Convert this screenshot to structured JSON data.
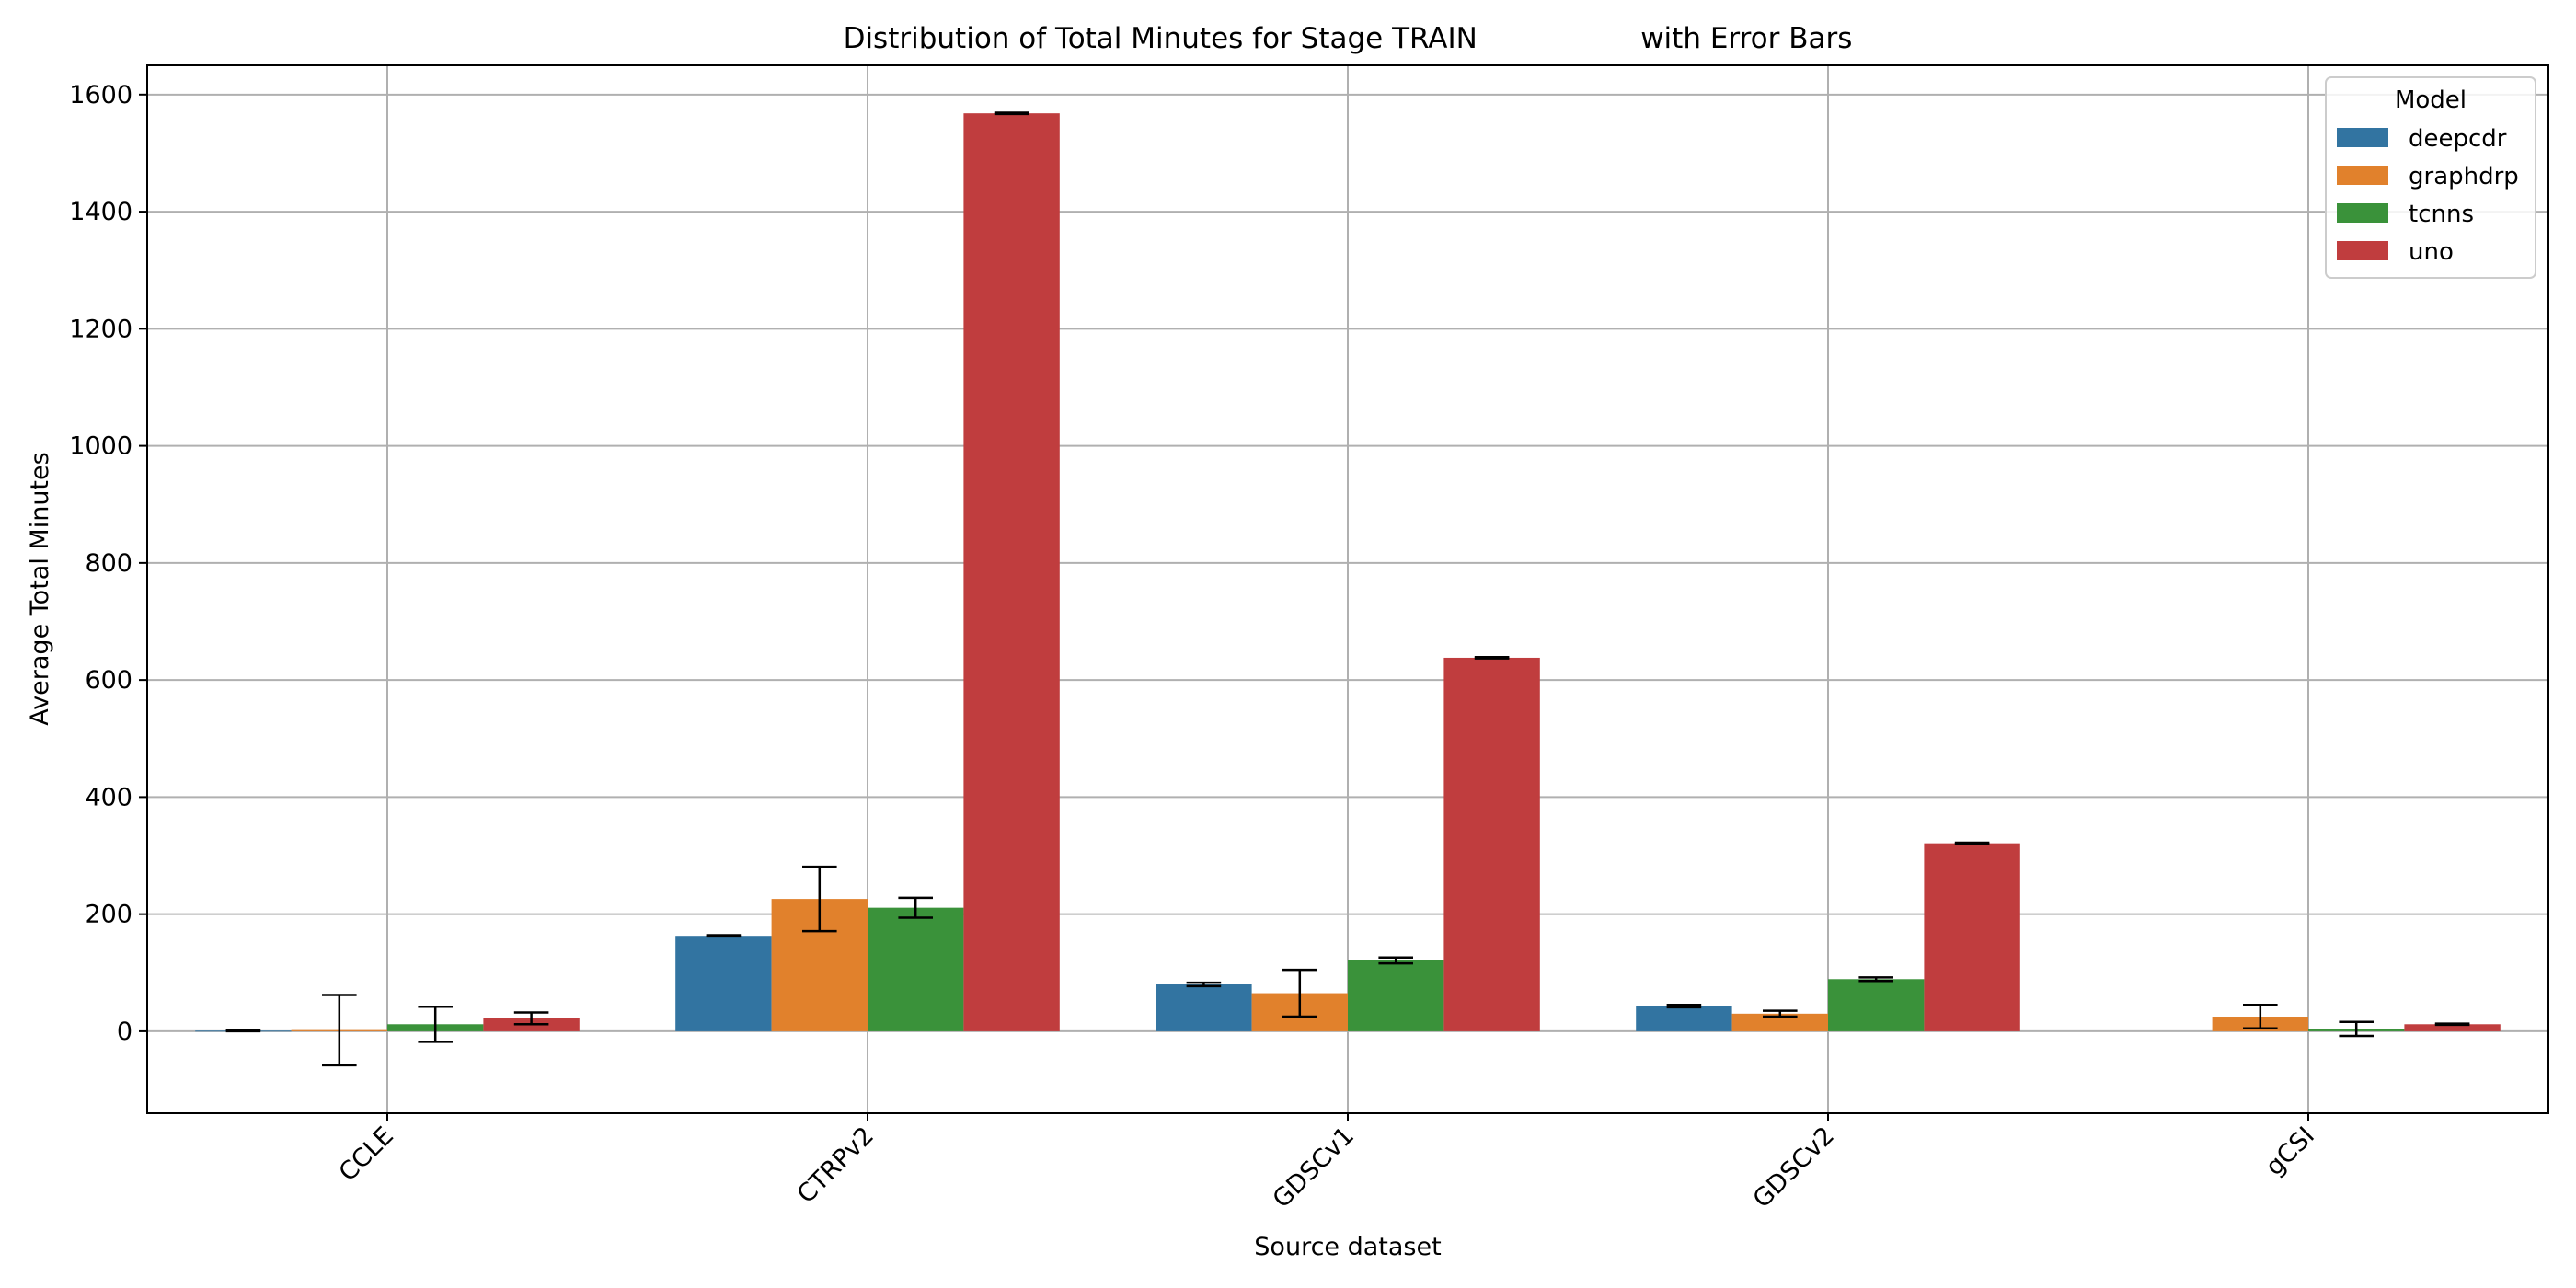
{
  "chart_data": {
    "type": "bar",
    "title": "Distribution of Total Minutes for Stage TRAIN                  with Error Bars",
    "xlabel": "Source dataset",
    "ylabel": "Average Total Minutes",
    "ylim": [
      -140,
      1650
    ],
    "yticks": [
      0,
      200,
      400,
      600,
      800,
      1000,
      1200,
      1400,
      1600
    ],
    "grid": true,
    "legend": {
      "title": "Model",
      "placement": "top-right"
    },
    "categories": [
      "CCLE",
      "CTRPv2",
      "GDSCv1",
      "GDSCv2",
      "gCSI"
    ],
    "series": [
      {
        "name": "deepcdr",
        "color": "#3274a1",
        "values": [
          1,
          163,
          80,
          43,
          null
        ],
        "errors": [
          1,
          1,
          3,
          2,
          null
        ]
      },
      {
        "name": "graphdrp",
        "color": "#e1812c",
        "values": [
          2,
          226,
          65,
          30,
          25
        ],
        "errors": [
          60,
          55,
          40,
          5,
          20
        ]
      },
      {
        "name": "tcnns",
        "color": "#3a923a",
        "values": [
          12,
          211,
          121,
          89,
          4
        ],
        "errors": [
          30,
          17,
          5,
          3,
          12
        ]
      },
      {
        "name": "uno",
        "color": "#c03d3e",
        "values": [
          22,
          1568,
          638,
          321,
          12
        ],
        "errors": [
          10,
          1,
          1,
          1,
          1
        ]
      }
    ]
  }
}
